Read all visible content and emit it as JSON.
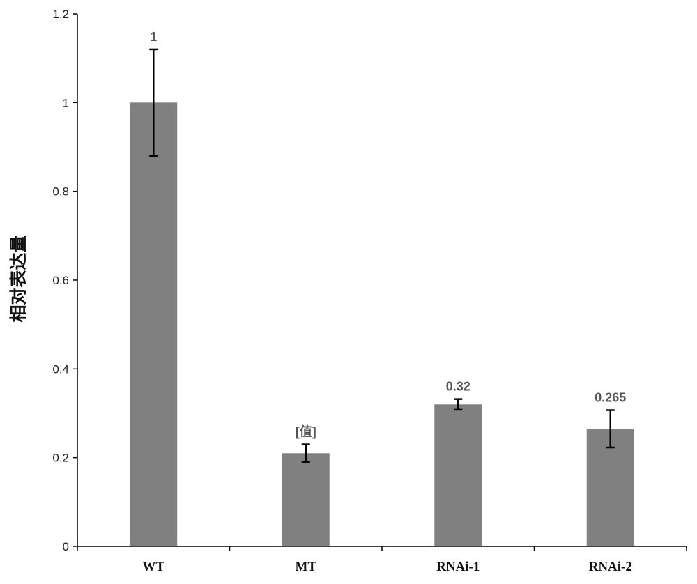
{
  "chart_data": {
    "type": "bar",
    "title": "",
    "xlabel": "",
    "ylabel": "相对表达量",
    "ylim": [
      0,
      1.2
    ],
    "yticks": [
      "0",
      "0.2",
      "0.4",
      "0.6",
      "0.8",
      "1",
      "1.2"
    ],
    "grid": false,
    "categories": [
      "WT",
      "MT",
      "RNAi-1",
      "RNAi-2"
    ],
    "values": [
      1.0,
      0.21,
      0.32,
      0.265
    ],
    "errors": [
      0.12,
      0.02,
      0.012,
      0.042
    ],
    "data_labels": [
      "1",
      "[值]",
      "0.32",
      "0.265"
    ],
    "bar_color": "#808080",
    "axis_color": "#000000",
    "label_color": "#555555"
  }
}
